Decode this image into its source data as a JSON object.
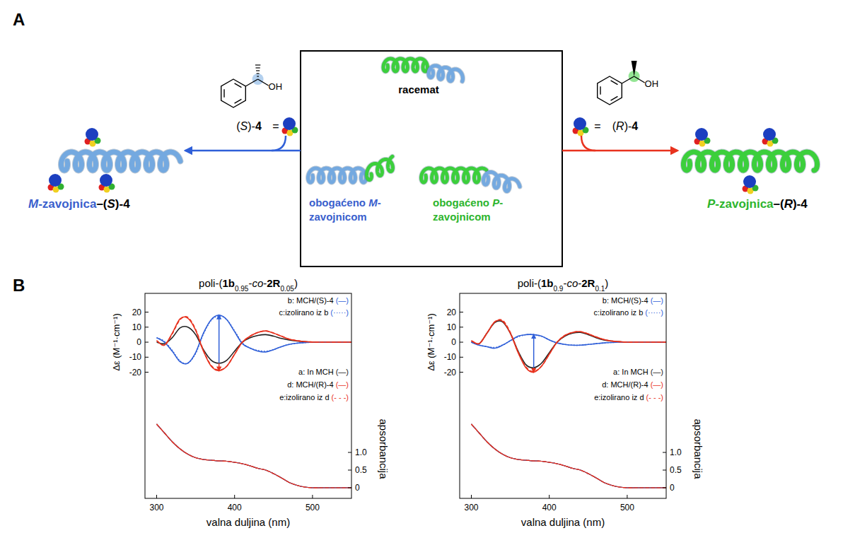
{
  "panel_a": {
    "label": "A",
    "center": {
      "racemat": "racemat",
      "enriched_m": "obogaćeno M-zavojnicom",
      "enriched_p": "obogaćeno P-zavojnicom"
    },
    "left": {
      "oh": "OH",
      "reagent": "(S)-4",
      "equals": "=",
      "product": "M-zavojnica–(S)-4"
    },
    "right": {
      "oh": "OH",
      "reagent": "(R)-4",
      "equals": "=",
      "product": "P-zavojnica–(R)-4"
    }
  },
  "panel_b_label": "B",
  "chart_data": [
    {
      "type": "line",
      "title": "poli-(1b0.95-co-2R0.05)",
      "x_label": "valna duljina (nm)",
      "y_label": "Δε (M⁻¹·cm⁻¹)",
      "y2_label": "apsorbancija",
      "x": [
        300,
        310,
        320,
        330,
        340,
        350,
        360,
        370,
        380,
        390,
        400,
        410,
        420,
        430,
        440,
        450,
        460,
        470,
        480,
        490,
        500,
        510,
        520,
        530,
        540,
        550
      ],
      "xlim": [
        285,
        550
      ],
      "xticks": [
        300,
        400,
        500
      ],
      "ylim": [
        -104,
        32.5
      ],
      "yticks": [
        -20,
        -10,
        0,
        10,
        20
      ],
      "y2lim": [
        -0.3,
        5.5
      ],
      "y2ticks": [
        0,
        0.5,
        {
          "value": 1,
          "label": "1.0"
        }
      ],
      "legend": "right",
      "series": [
        {
          "name": "a: In MCH (—)",
          "color": "#222222",
          "line_style": "solid",
          "values": [
            0,
            -1,
            3,
            9.5,
            10,
            5,
            -5,
            -12,
            -14,
            -12,
            -6,
            0,
            3,
            4.5,
            5,
            4,
            2.5,
            1.5,
            0.8,
            0.3,
            0,
            0,
            0,
            0,
            0,
            0
          ],
          "absorbance": [
            1.8,
            1.55,
            1.3,
            1.1,
            0.95,
            0.85,
            0.8,
            0.78,
            0.76,
            0.75,
            0.72,
            0.68,
            0.62,
            0.55,
            0.5,
            0.4,
            0.28,
            0.15,
            0.07,
            0.02,
            0,
            0,
            0,
            0,
            0,
            0
          ]
        },
        {
          "name": "b: MCH/(S)-4 (—)",
          "color": "#2f5fd8",
          "line_style": "solid",
          "values": [
            3,
            0,
            -6,
            -13,
            -14,
            -7,
            6,
            15,
            18,
            15,
            7,
            -1,
            -4,
            -6,
            -6.5,
            -5,
            -3,
            -1.5,
            -0.7,
            -0.3,
            0,
            0,
            0,
            0,
            0,
            0
          ],
          "absorbance": [
            1.8,
            1.55,
            1.3,
            1.1,
            0.95,
            0.85,
            0.8,
            0.78,
            0.76,
            0.75,
            0.72,
            0.68,
            0.62,
            0.55,
            0.5,
            0.4,
            0.28,
            0.15,
            0.07,
            0.02,
            0,
            0,
            0,
            0,
            0,
            0
          ]
        },
        {
          "name": "c:izolirano iz b (·····)",
          "color": "#2f5fd8",
          "line_style": "dotted",
          "values": [
            3,
            0.5,
            -5.5,
            -12.5,
            -14,
            -7.5,
            5.5,
            14.5,
            17.5,
            15,
            7.5,
            -0.5,
            -4,
            -5.5,
            -6,
            -5,
            -3,
            -1.5,
            -0.7,
            -0.3,
            0,
            0,
            0,
            0,
            0,
            0
          ],
          "absorbance": [
            1.8,
            1.55,
            1.3,
            1.1,
            0.95,
            0.85,
            0.8,
            0.78,
            0.76,
            0.75,
            0.72,
            0.68,
            0.62,
            0.55,
            0.5,
            0.4,
            0.28,
            0.15,
            0.07,
            0.02,
            0,
            0,
            0,
            0,
            0,
            0
          ]
        },
        {
          "name": "d: MCH/(R)-4 (—)",
          "color": "#e8321e",
          "line_style": "solid",
          "values": [
            1,
            -2,
            6,
            15.5,
            16,
            8,
            -6,
            -16,
            -19,
            -16,
            -8,
            0,
            4,
            6.5,
            7.5,
            6,
            4,
            2,
            1,
            0.4,
            0.1,
            0,
            0,
            0,
            0,
            0
          ],
          "absorbance": [
            1.8,
            1.55,
            1.3,
            1.1,
            0.95,
            0.85,
            0.8,
            0.78,
            0.76,
            0.75,
            0.72,
            0.68,
            0.62,
            0.55,
            0.5,
            0.4,
            0.28,
            0.15,
            0.07,
            0.02,
            0,
            0,
            0,
            0,
            0,
            0
          ]
        },
        {
          "name": "e:izolirano iz d (- - -)",
          "color": "#e8321e",
          "line_style": "dashed",
          "values": [
            1,
            -2,
            5.5,
            15,
            16.5,
            8.5,
            -5.5,
            -15.5,
            -18.5,
            -16,
            -8,
            0,
            4,
            6.5,
            7.5,
            6,
            4,
            2,
            1,
            0.4,
            0.1,
            0,
            0,
            0,
            0,
            0
          ],
          "absorbance": [
            1.8,
            1.55,
            1.3,
            1.1,
            0.95,
            0.85,
            0.8,
            0.78,
            0.76,
            0.75,
            0.72,
            0.68,
            0.62,
            0.55,
            0.5,
            0.4,
            0.28,
            0.15,
            0.07,
            0.02,
            0,
            0,
            0,
            0,
            0,
            0
          ]
        }
      ]
    },
    {
      "type": "line",
      "title": "poli-(1b0.9-co-2R0.1)",
      "x_label": "valna duljina (nm)",
      "y_label": "Δε (M⁻¹·cm⁻¹)",
      "y2_label": "apsorbancija",
      "x": [
        300,
        310,
        320,
        330,
        340,
        350,
        360,
        370,
        380,
        390,
        400,
        410,
        420,
        430,
        440,
        450,
        460,
        470,
        480,
        490,
        500,
        510,
        520,
        530,
        540,
        550
      ],
      "xlim": [
        285,
        550
      ],
      "xticks": [
        300,
        400,
        500
      ],
      "ylim": [
        -104,
        32.5
      ],
      "yticks": [
        -20,
        -10,
        0,
        10,
        20
      ],
      "y2lim": [
        -0.3,
        5.5
      ],
      "y2ticks": [
        0,
        0.5,
        {
          "value": 1,
          "label": "1.0"
        }
      ],
      "legend": "right",
      "series": [
        {
          "name": "a: In MCH (—)",
          "color": "#222222",
          "line_style": "solid",
          "values": [
            0,
            -1,
            6,
            13,
            13.5,
            6,
            -6,
            -15,
            -17,
            -14,
            -7,
            0,
            4,
            6,
            6.5,
            5,
            3,
            1.5,
            0.7,
            0.2,
            0,
            0,
            0,
            0,
            0,
            0
          ],
          "absorbance": [
            1.8,
            1.55,
            1.3,
            1.1,
            0.95,
            0.85,
            0.8,
            0.78,
            0.76,
            0.75,
            0.72,
            0.68,
            0.62,
            0.55,
            0.5,
            0.4,
            0.28,
            0.15,
            0.07,
            0.02,
            0,
            0,
            0,
            0,
            0,
            0
          ]
        },
        {
          "name": "b: MCH/(S)-4 (—)",
          "color": "#2f5fd8",
          "line_style": "solid",
          "values": [
            0,
            -2,
            -3,
            -4,
            -2,
            1,
            4,
            5,
            5,
            4,
            1.5,
            -0.5,
            -1.5,
            -2,
            -2,
            -1.5,
            -1,
            -0.5,
            -0.2,
            0,
            0,
            0,
            0,
            0,
            0,
            0
          ],
          "absorbance": [
            1.8,
            1.55,
            1.3,
            1.1,
            0.95,
            0.85,
            0.8,
            0.78,
            0.76,
            0.75,
            0.72,
            0.68,
            0.62,
            0.55,
            0.5,
            0.4,
            0.28,
            0.15,
            0.07,
            0.02,
            0,
            0,
            0,
            0,
            0,
            0
          ]
        },
        {
          "name": "c:izolirano iz b (·····)",
          "color": "#2f5fd8",
          "line_style": "dotted",
          "values": [
            0,
            -2,
            -3,
            -3.5,
            -2,
            1,
            3.5,
            5,
            5,
            4,
            1.5,
            -0.5,
            -1.5,
            -2,
            -2,
            -1.5,
            -1,
            -0.5,
            -0.2,
            0,
            0,
            0,
            0,
            0,
            0,
            0
          ],
          "absorbance": [
            1.8,
            1.55,
            1.3,
            1.1,
            0.95,
            0.85,
            0.8,
            0.78,
            0.76,
            0.75,
            0.72,
            0.68,
            0.62,
            0.55,
            0.5,
            0.4,
            0.28,
            0.15,
            0.07,
            0.02,
            0,
            0,
            0,
            0,
            0,
            0
          ]
        },
        {
          "name": "d: MCH/(R)-4 (—)",
          "color": "#e8321e",
          "line_style": "solid",
          "values": [
            1,
            -1,
            6,
            13.5,
            14,
            6,
            -7,
            -17,
            -20,
            -16,
            -8,
            0,
            4.5,
            6.5,
            7,
            5.5,
            3.5,
            1.8,
            0.8,
            0.3,
            0,
            0,
            0,
            0,
            0,
            0
          ],
          "absorbance": [
            1.8,
            1.55,
            1.3,
            1.1,
            0.95,
            0.85,
            0.8,
            0.78,
            0.76,
            0.75,
            0.72,
            0.68,
            0.62,
            0.55,
            0.5,
            0.4,
            0.28,
            0.15,
            0.07,
            0.02,
            0,
            0,
            0,
            0,
            0,
            0
          ]
        },
        {
          "name": "e:izolirano iz d (- - -)",
          "color": "#e8321e",
          "line_style": "dashed",
          "values": [
            1,
            -1,
            6,
            13.5,
            14.5,
            6.5,
            -6.5,
            -16.5,
            -19.5,
            -16,
            -8,
            0,
            4.5,
            6.5,
            7,
            5.5,
            3.5,
            1.8,
            0.8,
            0.3,
            0,
            0,
            0,
            0,
            0,
            0
          ],
          "absorbance": [
            1.8,
            1.55,
            1.3,
            1.1,
            0.95,
            0.85,
            0.8,
            0.78,
            0.76,
            0.75,
            0.72,
            0.68,
            0.62,
            0.55,
            0.5,
            0.4,
            0.28,
            0.15,
            0.07,
            0.02,
            0,
            0,
            0,
            0,
            0,
            0
          ]
        }
      ]
    }
  ]
}
